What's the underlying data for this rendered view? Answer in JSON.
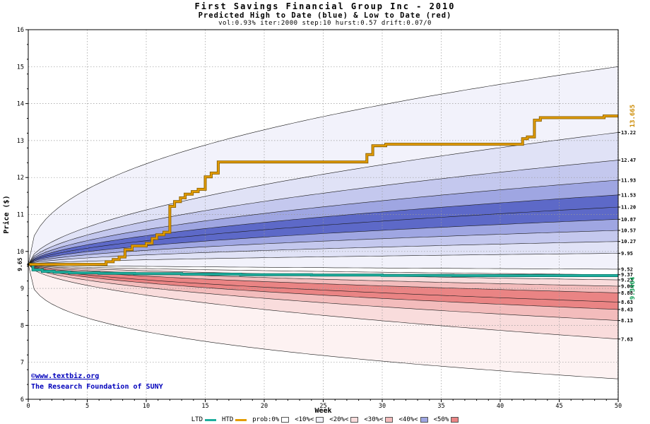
{
  "header": {
    "title": "First Savings Financial Group Inc - 2010",
    "subtitle": "Predicted High to Date (blue) &  Low to Date (red)",
    "params": "vol:0.93% iter:2000 step:10 hurst:0.57 drift:0.07/0"
  },
  "footer": {
    "copyright": "©www.textbiz.org",
    "org": "The Research Foundation of SUNY"
  },
  "chart_data": {
    "type": "area",
    "title": "First Savings Financial Group Inc - 2010",
    "xlabel": "Week",
    "ylabel": "Price ($)",
    "xlim": [
      0,
      50
    ],
    "ylim": [
      6,
      16
    ],
    "grid": "dotted",
    "x_ticks": [
      0,
      5,
      10,
      15,
      20,
      25,
      30,
      35,
      40,
      45,
      50
    ],
    "y_ticks": [
      6,
      7,
      8,
      9,
      10,
      11,
      12,
      13,
      14,
      15,
      16
    ],
    "start_price": 9.65,
    "start_label": "9.65",
    "fan": {
      "exponent": 0.55,
      "upper": {
        "name": "high-to-date-probability-bands",
        "envelope_end": 15.0,
        "envelope_exponent": 0.42,
        "median_end": 11.2,
        "boundaries": [
          9.52,
          9.95,
          10.27,
          10.57,
          10.87,
          11.53,
          11.93,
          12.47,
          13.22
        ],
        "band_colors": [
          "#f2f2fb",
          "#e0e2f6",
          "#c4c8ee",
          "#9fa6e2",
          "#5d69c8",
          "#9fa6e2",
          "#c4c8ee",
          "#e0e2f6",
          "#f2f2fb"
        ]
      },
      "lower": {
        "name": "low-to-date-probability-bands",
        "envelope_end": 6.55,
        "envelope_exponent": 0.33,
        "median_end": 8.63,
        "boundaries": [
          9.37,
          9.23,
          9.06,
          8.88,
          8.43,
          8.13,
          7.63
        ],
        "band_colors": [
          "#fdf2f2",
          "#f9dcdc",
          "#f3bcbc",
          "#ea8484",
          "#f3bcbc",
          "#f9dcdc",
          "#fdf2f2"
        ]
      }
    },
    "right_labels": [
      "13.22",
      "12.47",
      "11.93",
      "11.53",
      "11.20",
      "10.87",
      "10.57",
      "10.27",
      "9.95",
      "9.52",
      "9.37",
      "9.23",
      "9.06",
      "8.88",
      "8.63",
      "8.43",
      "8.13",
      "7.63"
    ],
    "htd": {
      "label": "HTD",
      "color": "#e39c00",
      "outline": "#8a6000",
      "end_label": "13.665",
      "end_label_color": "#cc8a00",
      "steps": [
        [
          0,
          9.65
        ],
        [
          6.3,
          9.65
        ],
        [
          6.6,
          9.72
        ],
        [
          7.2,
          9.78
        ],
        [
          7.7,
          9.85
        ],
        [
          8.2,
          10.05
        ],
        [
          8.8,
          10.15
        ],
        [
          10.0,
          10.22
        ],
        [
          10.5,
          10.35
        ],
        [
          10.9,
          10.45
        ],
        [
          11.5,
          10.52
        ],
        [
          12.0,
          11.22
        ],
        [
          12.4,
          11.35
        ],
        [
          12.9,
          11.45
        ],
        [
          13.3,
          11.55
        ],
        [
          13.9,
          11.62
        ],
        [
          14.4,
          11.68
        ],
        [
          15.0,
          12.02
        ],
        [
          15.5,
          12.12
        ],
        [
          16.1,
          12.42
        ],
        [
          28.4,
          12.42
        ],
        [
          28.7,
          12.62
        ],
        [
          29.2,
          12.86
        ],
        [
          30.3,
          12.9
        ],
        [
          41.6,
          12.9
        ],
        [
          41.9,
          13.05
        ],
        [
          42.3,
          13.1
        ],
        [
          42.9,
          13.55
        ],
        [
          43.4,
          13.62
        ],
        [
          48.5,
          13.62
        ],
        [
          48.8,
          13.665
        ],
        [
          50,
          13.665
        ]
      ]
    },
    "ltd": {
      "label": "LTD",
      "color": "#1fae9e",
      "outline": "#0d7d6e",
      "end_label": "9.3464",
      "end_label_color": "#089a50",
      "steps": [
        [
          0,
          9.65
        ],
        [
          0.4,
          9.5
        ],
        [
          1.2,
          9.46
        ],
        [
          2.2,
          9.44
        ],
        [
          3.5,
          9.42
        ],
        [
          6,
          9.41
        ],
        [
          9,
          9.4
        ],
        [
          13,
          9.385
        ],
        [
          18,
          9.37
        ],
        [
          24,
          9.36
        ],
        [
          30,
          9.35
        ],
        [
          36,
          9.3464
        ],
        [
          50,
          9.3464
        ]
      ]
    }
  },
  "legend": {
    "items": [
      {
        "label": "LTD",
        "type": "line",
        "color": "#1fae9e"
      },
      {
        "label": "HTD",
        "type": "line",
        "color": "#e39c00"
      },
      {
        "label": "prob:0%",
        "type": "box",
        "color": "#ffffff"
      },
      {
        "label": "<10%<",
        "type": "box",
        "color": "#f2f2fb"
      },
      {
        "label": "<20%<",
        "type": "box",
        "color": "#f9dcdc"
      },
      {
        "label": "<30%<",
        "type": "box",
        "color": "#f3bcbc"
      },
      {
        "label": "<40%<",
        "type": "box",
        "color": "#9fa6e2"
      },
      {
        "label": "<50%",
        "type": "box",
        "color": "#ea8484"
      }
    ]
  }
}
